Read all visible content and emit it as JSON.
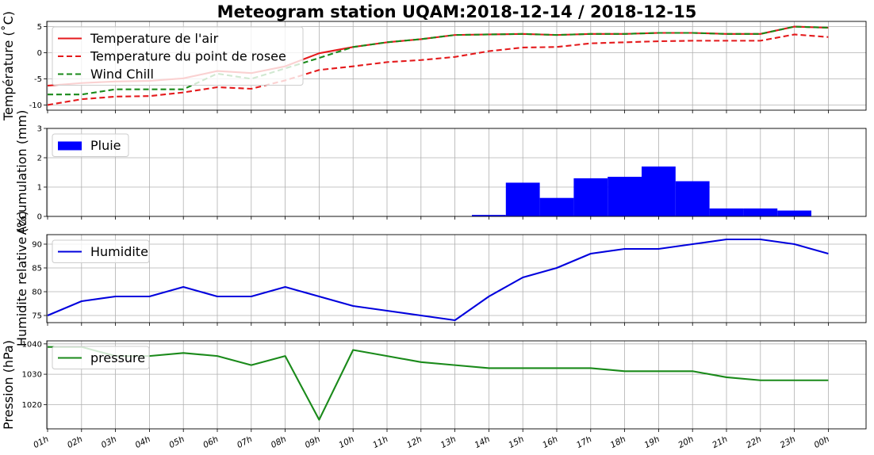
{
  "title": "Meteogram station UQAM:2018-12-14 / 2018-12-15",
  "colors": {
    "air": "#e41a1c",
    "dew": "#e41a1c",
    "wind_chill": "#1a8a1a",
    "rain": "#0000ff",
    "humidity": "#0000dd",
    "pressure": "#1a8a1a",
    "grid": "#b0b0b0"
  },
  "x_ticks": [
    "01h",
    "02h",
    "03h",
    "04h",
    "05h",
    "06h",
    "07h",
    "08h",
    "09h",
    "10h",
    "11h",
    "12h",
    "13h",
    "14h",
    "15h",
    "16h",
    "17h",
    "18h",
    "19h",
    "20h",
    "21h",
    "22h",
    "23h",
    "00h"
  ],
  "chart_data": [
    {
      "type": "line",
      "ylabel": "Température (˚C)",
      "ylim": [
        -11,
        6
      ],
      "yticks": [
        -10,
        -5,
        0,
        5
      ],
      "grid": true,
      "legend_position": "top-left",
      "x": [
        "01h",
        "02h",
        "03h",
        "04h",
        "05h",
        "06h",
        "07h",
        "08h",
        "09h",
        "10h",
        "11h",
        "12h",
        "13h",
        "14h",
        "15h",
        "16h",
        "17h",
        "18h",
        "19h",
        "20h",
        "21h",
        "22h",
        "23h",
        "00h"
      ],
      "series": [
        {
          "name": "Temperature de l'air",
          "style": "solid",
          "color": "#e41a1c",
          "values": [
            -6.3,
            -5.8,
            -5.5,
            -5.4,
            -4.9,
            -3.5,
            -3.9,
            -2.6,
            -0.1,
            1.1,
            2.0,
            2.6,
            3.4,
            3.5,
            3.6,
            3.4,
            3.6,
            3.6,
            3.8,
            3.8,
            3.6,
            3.6,
            5.0,
            4.8
          ]
        },
        {
          "name": "Temperature du point de rosee",
          "style": "dashed",
          "color": "#e41a1c",
          "values": [
            -10.0,
            -8.9,
            -8.4,
            -8.3,
            -7.6,
            -6.6,
            -6.9,
            -5.3,
            -3.3,
            -2.6,
            -1.8,
            -1.4,
            -0.8,
            0.3,
            1.0,
            1.1,
            1.8,
            2.0,
            2.2,
            2.3,
            2.3,
            2.3,
            3.5,
            3.0
          ]
        },
        {
          "name": "Wind Chill",
          "style": "dashed",
          "color": "#1a8a1a",
          "values": [
            -8.0,
            -8.0,
            -7.0,
            -7.0,
            -7.0,
            -4.0,
            -5.0,
            -3.0,
            -1.0,
            1.1,
            2.0,
            2.6,
            3.4,
            3.5,
            3.6,
            3.4,
            3.6,
            3.6,
            3.8,
            3.8,
            3.6,
            3.6,
            5.0,
            4.8
          ]
        }
      ]
    },
    {
      "type": "bar",
      "ylabel": "Accumulation (mm)",
      "ylim": [
        0,
        3
      ],
      "yticks": [
        0,
        1,
        2,
        3
      ],
      "grid": true,
      "legend_position": "top-left",
      "series": [
        {
          "name": "Pluie",
          "color": "#0000ff",
          "bars": [
            {
              "start": "13h",
              "end": "14h",
              "value": 0.05,
              "offset": 0.5
            },
            {
              "start": "14h",
              "end": "15h",
              "value": 1.15,
              "offset": 0.5
            },
            {
              "start": "15h",
              "end": "16h",
              "value": 0.63,
              "offset": 0.5
            },
            {
              "start": "16h",
              "end": "17h",
              "value": 1.3,
              "offset": 0.5
            },
            {
              "start": "17h",
              "end": "18h",
              "value": 1.35,
              "offset": 0.5
            },
            {
              "start": "18h",
              "end": "19h",
              "value": 1.7,
              "offset": 0.5
            },
            {
              "start": "19h",
              "end": "20h",
              "value": 1.2,
              "offset": 0.5
            },
            {
              "start": "20h",
              "end": "21h",
              "value": 0.27,
              "offset": 0.5
            },
            {
              "start": "21h",
              "end": "22h",
              "value": 0.27,
              "offset": 0.5
            },
            {
              "start": "22h",
              "end": "23h",
              "value": 0.2,
              "offset": 0.5
            }
          ]
        }
      ]
    },
    {
      "type": "line",
      "ylabel": "Humidite relative (%)",
      "ylim": [
        73.5,
        92
      ],
      "yticks": [
        75,
        80,
        85,
        90
      ],
      "grid": true,
      "legend_position": "top-left",
      "x": [
        "01h",
        "02h",
        "03h",
        "04h",
        "05h",
        "06h",
        "07h",
        "08h",
        "09h",
        "10h",
        "11h",
        "12h",
        "13h",
        "14h",
        "15h",
        "16h",
        "17h",
        "18h",
        "19h",
        "20h",
        "21h",
        "22h",
        "23h",
        "00h"
      ],
      "series": [
        {
          "name": "Humidite",
          "style": "solid",
          "color": "#0000dd",
          "values": [
            75,
            78,
            79,
            79,
            81,
            79,
            79,
            81,
            79,
            77,
            76,
            75,
            74,
            79,
            83,
            85,
            88,
            89,
            89,
            90,
            91,
            91,
            90,
            88
          ]
        }
      ]
    },
    {
      "type": "line",
      "ylabel": "Pression (hPa)",
      "ylim": [
        1012,
        1041
      ],
      "yticks": [
        1020,
        1030,
        1040
      ],
      "grid": true,
      "legend_position": "top-left",
      "x": [
        "01h",
        "02h",
        "03h",
        "04h",
        "05h",
        "06h",
        "07h",
        "08h",
        "09h",
        "10h",
        "11h",
        "12h",
        "13h",
        "14h",
        "15h",
        "16h",
        "17h",
        "18h",
        "19h",
        "20h",
        "21h",
        "22h",
        "23h",
        "00h"
      ],
      "series": [
        {
          "name": "pressure",
          "style": "solid",
          "color": "#1a8a1a",
          "values": [
            1039,
            1039,
            1036,
            1036,
            1037,
            1036,
            1033,
            1036,
            1015,
            1038,
            1036,
            1034,
            1033,
            1032,
            1032,
            1032,
            1032,
            1031,
            1031,
            1031,
            1029,
            1028,
            1028,
            1028
          ]
        }
      ]
    }
  ]
}
